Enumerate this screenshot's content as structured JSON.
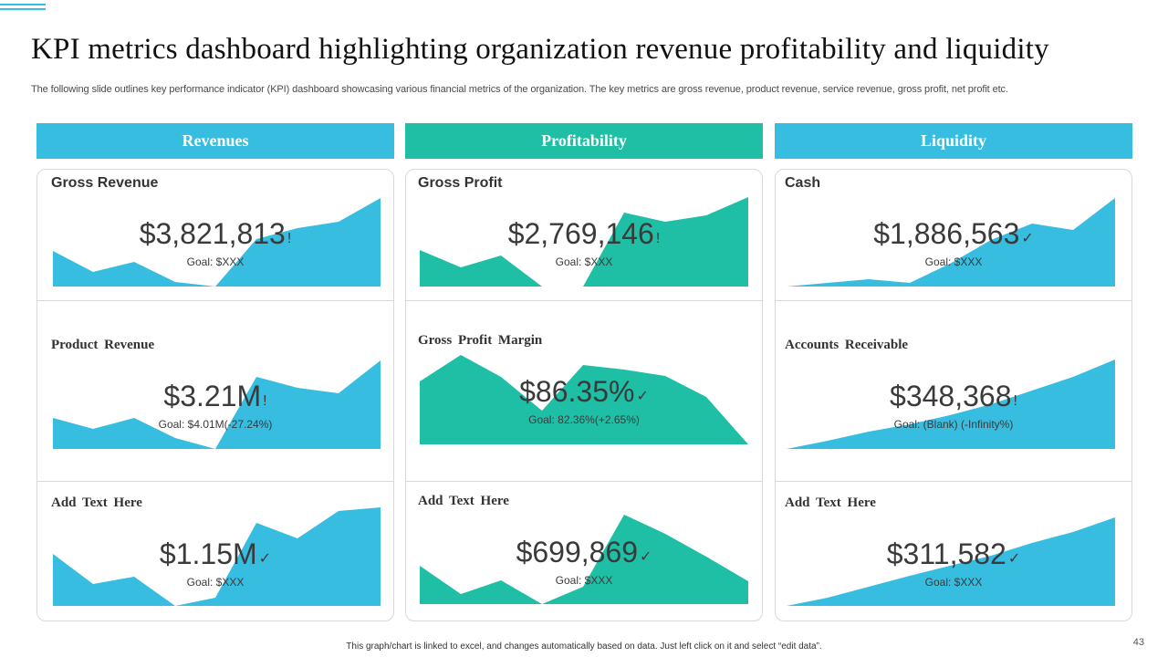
{
  "title": "KPI metrics dashboard highlighting organization revenue profitability and liquidity",
  "subtitle": "The following slide outlines key performance indicator (KPI) dashboard showcasing various financial metrics of the organization. The key metrics are gross revenue, product revenue, service revenue, gross profit, net profit etc.",
  "colors": {
    "blue": "#36bde0",
    "teal": "#1fbfa6"
  },
  "columns": {
    "revenues": {
      "header": "Revenues",
      "metrics": [
        {
          "label": "Gross Revenue",
          "value": "$3,821,813",
          "status_icon": "!",
          "goal": "Goal: $XXX"
        },
        {
          "label": "Product  Revenue",
          "value": "$3.21M",
          "status_icon": "!",
          "goal": "Goal: $4.01M(-27.24%)"
        },
        {
          "label": "Add  Text Here",
          "value": "$1.15M",
          "status_icon": "✓",
          "goal": "Goal: $XXX"
        }
      ]
    },
    "profitability": {
      "header": "Profitability",
      "metrics": [
        {
          "label": "Gross Profit",
          "value": "$2,769,146",
          "status_icon": "!",
          "goal": "Goal: $XXX"
        },
        {
          "label": "Gross Profit  Margin",
          "value": "$86.35%",
          "status_icon": "✓",
          "goal": "Goal: 82.36%(+2.65%)"
        },
        {
          "label": "Add  Text Here",
          "value": "$699,869",
          "status_icon": "✓",
          "goal": "Goal: $XXX"
        }
      ]
    },
    "liquidity": {
      "header": "Liquidity",
      "metrics": [
        {
          "label": "Cash",
          "value": "$1,886,563",
          "status_icon": "✓",
          "goal": "Goal: $XXX"
        },
        {
          "label": "Accounts  Receivable",
          "value": "$348,368",
          "status_icon": "!",
          "goal": "Goal: (Blank) (-Infinity%)"
        },
        {
          "label": "Add  Text Here",
          "value": "$311,582",
          "status_icon": "✓",
          "goal": "Goal: $XXX"
        }
      ]
    }
  },
  "footer_note": "This graph/chart is linked to excel, and changes automatically based on data. Just left click on it and select “edit data”.",
  "page_number": "43"
}
